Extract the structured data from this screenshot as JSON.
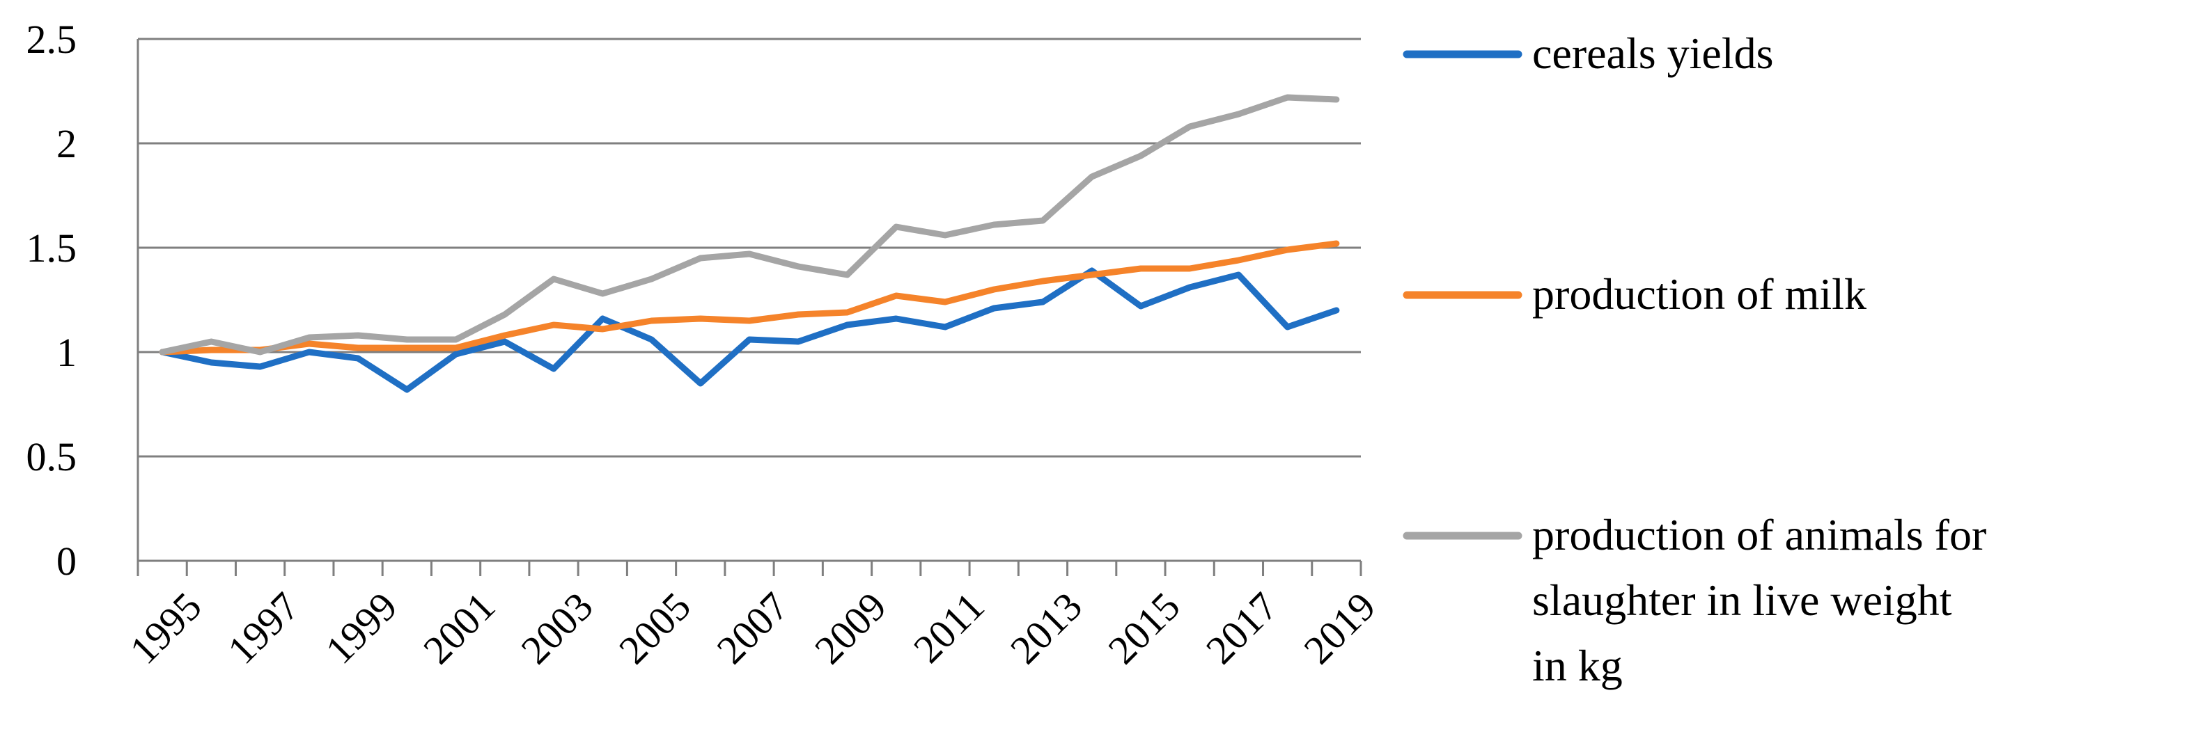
{
  "chart_data": {
    "type": "line",
    "title": "",
    "xlabel": "",
    "ylabel": "",
    "ylim": [
      0,
      2.5
    ],
    "yticks": [
      0,
      0.5,
      1,
      1.5,
      2,
      2.5
    ],
    "ytick_labels": [
      "0",
      "0.5",
      "1",
      "1.5",
      "2",
      "2.5"
    ],
    "x": [
      1995,
      1996,
      1997,
      1998,
      1999,
      2000,
      2001,
      2002,
      2003,
      2004,
      2005,
      2006,
      2007,
      2008,
      2009,
      2010,
      2011,
      2012,
      2013,
      2014,
      2015,
      2016,
      2017,
      2018,
      2019
    ],
    "xtick_labels": [
      "1995",
      "1997",
      "1999",
      "2001",
      "2003",
      "2005",
      "2007",
      "2009",
      "2011",
      "2013",
      "2015",
      "2017",
      "2019"
    ],
    "grid": "horizontal",
    "legend_position": "right",
    "series": [
      {
        "name": "cereals yields",
        "color": "#1f6fc4",
        "values": [
          1.0,
          0.95,
          0.93,
          1.0,
          0.97,
          0.82,
          0.99,
          1.05,
          0.92,
          1.16,
          1.06,
          0.85,
          1.06,
          1.05,
          1.13,
          1.16,
          1.12,
          1.21,
          1.24,
          1.39,
          1.22,
          1.31,
          1.37,
          1.12,
          1.2
        ]
      },
      {
        "name": "production of milk",
        "color": "#f5832a",
        "values": [
          1.0,
          1.01,
          1.01,
          1.04,
          1.02,
          1.02,
          1.02,
          1.08,
          1.13,
          1.11,
          1.15,
          1.16,
          1.15,
          1.18,
          1.19,
          1.27,
          1.24,
          1.3,
          1.34,
          1.37,
          1.4,
          1.4,
          1.44,
          1.49,
          1.52
        ]
      },
      {
        "name": "production of animals for slaughter in live weight in kg",
        "legend_lines": [
          "production of animals for",
          "slaughter in live weight",
          "in kg"
        ],
        "color": "#a5a5a5",
        "values": [
          1.0,
          1.05,
          1.0,
          1.07,
          1.08,
          1.06,
          1.06,
          1.18,
          1.35,
          1.28,
          1.35,
          1.45,
          1.47,
          1.41,
          1.37,
          1.6,
          1.56,
          1.61,
          1.63,
          1.84,
          1.94,
          2.08,
          2.14,
          2.22,
          2.21
        ]
      }
    ]
  }
}
